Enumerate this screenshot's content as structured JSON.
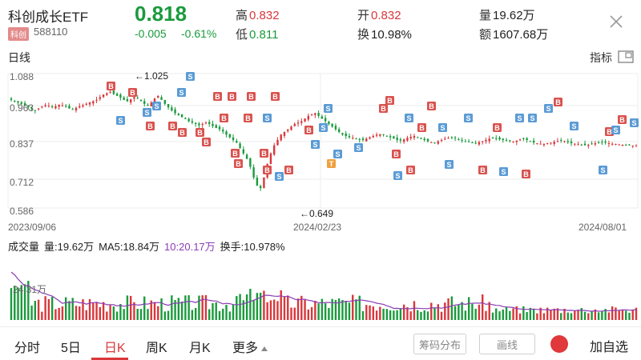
{
  "header": {
    "name": "科创成长ETF",
    "badge": "科创",
    "code": "588110",
    "price": "0.818",
    "change": "-0.005",
    "change_pct": "-0.61%",
    "high_label": "高",
    "high": "0.832",
    "low_label": "低",
    "low": "0.811",
    "open_label": "开",
    "open": "0.832",
    "turnover_label": "换",
    "turnover": "10.98%",
    "volume_label": "量",
    "volume": "19.62万",
    "amount_label": "额",
    "amount": "1607.68万"
  },
  "chart_header": {
    "title": "日线",
    "indicator": "指标"
  },
  "volume_header": {
    "title": "成交量",
    "vol": "量:19.62万",
    "ma5": "MA5:18.84万",
    "ma10": "10:20.17万",
    "turnover": "换手:10.978%"
  },
  "tabs": [
    {
      "label": "分时"
    },
    {
      "label": "5日"
    },
    {
      "label": "日K"
    },
    {
      "label": "周K"
    },
    {
      "label": "月K"
    },
    {
      "label": "更多"
    }
  ],
  "buttons": {
    "chip": "筹码分布",
    "draw": "画线",
    "add": "加自选"
  },
  "colors": {
    "up": "#d9373b",
    "down": "#1a9a3c",
    "ma": "#8a3cb4",
    "buy": "#d9534f",
    "sell": "#5b9bd5"
  },
  "chart_data": {
    "type": "candlestick",
    "y_ticks": [
      "1.088",
      "0.963",
      "0.837",
      "0.712",
      "0.586"
    ],
    "x_ticks": [
      "2023/09/06",
      "2024/02/23",
      "2024/08/01"
    ],
    "annotations": [
      {
        "text": "←1.025",
        "value": 1.025
      },
      {
        "text": "←0.649",
        "value": 0.649
      }
    ],
    "volume_ticks": [
      "24.31万"
    ],
    "series_closes": [
      0.99,
      0.985,
      0.98,
      0.975,
      0.968,
      0.962,
      0.955,
      0.95,
      0.958,
      0.965,
      0.97,
      0.968,
      0.962,
      0.966,
      0.972,
      0.97,
      0.965,
      0.958,
      0.955,
      0.96,
      0.966,
      0.97,
      0.975,
      0.98,
      0.985,
      0.99,
      1.0,
      1.01,
      1.015,
      1.02,
      1.012,
      1.005,
      0.998,
      0.99,
      0.985,
      0.992,
      1.0,
      0.995,
      0.985,
      0.975,
      0.968,
      0.98,
      0.995,
      1.005,
      0.99,
      0.975,
      0.962,
      0.95,
      0.94,
      0.932,
      0.925,
      0.918,
      0.91,
      0.905,
      0.9,
      0.895,
      0.9,
      0.905,
      0.9,
      0.892,
      0.885,
      0.88,
      0.872,
      0.86,
      0.85,
      0.84,
      0.83,
      0.81,
      0.79,
      0.77,
      0.74,
      0.7,
      0.67,
      0.66,
      0.7,
      0.75,
      0.79,
      0.82,
      0.84,
      0.86,
      0.87,
      0.88,
      0.89,
      0.9,
      0.905,
      0.91,
      0.92,
      0.93,
      0.935,
      0.94,
      0.93,
      0.92,
      0.91,
      0.9,
      0.89,
      0.88,
      0.87,
      0.86,
      0.855,
      0.85,
      0.848,
      0.845,
      0.842,
      0.84,
      0.845,
      0.85,
      0.855,
      0.86,
      0.862,
      0.86,
      0.855,
      0.85,
      0.845,
      0.84,
      0.838,
      0.842,
      0.848,
      0.852,
      0.855,
      0.85,
      0.845,
      0.84,
      0.835,
      0.832,
      0.83,
      0.835,
      0.84,
      0.845,
      0.848,
      0.85,
      0.847,
      0.843,
      0.838,
      0.835,
      0.832,
      0.83,
      0.828,
      0.832,
      0.836,
      0.84,
      0.845,
      0.848,
      0.846,
      0.842,
      0.84,
      0.838,
      0.836,
      0.835,
      0.838,
      0.842,
      0.845,
      0.84,
      0.835,
      0.83,
      0.828,
      0.826,
      0.825,
      0.828,
      0.83,
      0.833,
      0.836,
      0.838,
      0.836,
      0.832,
      0.828,
      0.826,
      0.824,
      0.822,
      0.82,
      0.822,
      0.825,
      0.828,
      0.83,
      0.832,
      0.83,
      0.828,
      0.826,
      0.825,
      0.823,
      0.822,
      0.821,
      0.82,
      0.819,
      0.818
    ]
  }
}
